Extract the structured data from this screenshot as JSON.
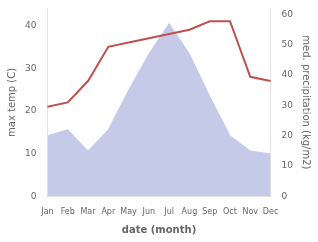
{
  "chart_data": {
    "type": "line",
    "categories": [
      "Jan",
      "Feb",
      "Mar",
      "Apr",
      "May",
      "Jun",
      "Jul",
      "Aug",
      "Sep",
      "Oct",
      "Nov",
      "Dec"
    ],
    "xlabel": "date (month)",
    "ylabel": "max temp (C)",
    "y2label": "med. precipitation (kg/m2)",
    "series": [
      {
        "type": "area",
        "axis": "y2",
        "color": "#c5cae9",
        "values": [
          20,
          22,
          15,
          22,
          35,
          47,
          57,
          47,
          33,
          20,
          15,
          14
        ]
      },
      {
        "type": "line",
        "color": "#c0504d",
        "values": [
          21,
          22,
          27,
          35,
          36,
          37,
          38,
          39,
          41,
          41,
          28,
          27
        ]
      }
    ],
    "ylim": [
      0,
      44
    ],
    "yticks": [
      0,
      10,
      20,
      30,
      40
    ],
    "y2lim": [
      0,
      62
    ],
    "y2ticks": [
      0,
      10,
      20,
      30,
      40,
      50,
      60
    ],
    "grid": false
  }
}
